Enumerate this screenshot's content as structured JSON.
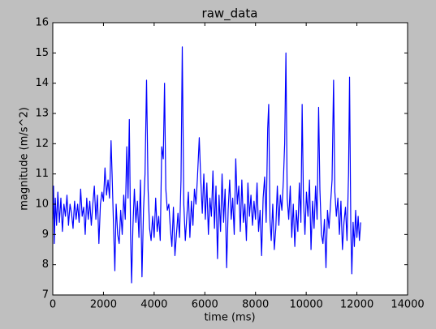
{
  "chart_data": {
    "type": "line",
    "title": "raw_data",
    "xlabel": "time (ms)",
    "ylabel": "magnitude (m/s^2)",
    "color": "#0000ff",
    "grid": false,
    "x": [
      0,
      30,
      60,
      100,
      150,
      200,
      260,
      320,
      380,
      440,
      500,
      560,
      620,
      680,
      740,
      800,
      860,
      920,
      980,
      1040,
      1100,
      1160,
      1220,
      1280,
      1340,
      1400,
      1460,
      1520,
      1580,
      1640,
      1700,
      1760,
      1820,
      1880,
      1940,
      2000,
      2060,
      2120,
      2180,
      2240,
      2300,
      2340,
      2400,
      2450,
      2500,
      2560,
      2620,
      2680,
      2740,
      2800,
      2860,
      2920,
      2970,
      3020,
      3070,
      3110,
      3160,
      3220,
      3280,
      3340,
      3400,
      3460,
      3520,
      3580,
      3640,
      3700,
      3760,
      3820,
      3880,
      3940,
      4000,
      4060,
      4120,
      4180,
      4240,
      4300,
      4360,
      4410,
      4460,
      4520,
      4580,
      4640,
      4700,
      4760,
      4820,
      4880,
      4940,
      5000,
      5060,
      5110,
      5170,
      5230,
      5290,
      5350,
      5410,
      5470,
      5530,
      5590,
      5650,
      5710,
      5780,
      5840,
      5900,
      5960,
      6020,
      6080,
      6140,
      6200,
      6260,
      6320,
      6380,
      6440,
      6500,
      6560,
      6620,
      6680,
      6740,
      6800,
      6860,
      6920,
      6980,
      7040,
      7100,
      7160,
      7220,
      7280,
      7340,
      7400,
      7460,
      7520,
      7580,
      7640,
      7700,
      7760,
      7820,
      7880,
      7940,
      8000,
      8060,
      8120,
      8180,
      8240,
      8300,
      8360,
      8420,
      8480,
      8520,
      8570,
      8620,
      8680,
      8740,
      8800,
      8860,
      8920,
      8980,
      9040,
      9100,
      9150,
      9200,
      9250,
      9310,
      9370,
      9430,
      9490,
      9550,
      9610,
      9670,
      9730,
      9790,
      9840,
      9890,
      9950,
      10010,
      10070,
      10130,
      10190,
      10250,
      10310,
      10370,
      10430,
      10490,
      10540,
      10600,
      10660,
      10720,
      10780,
      10840,
      10900,
      10960,
      11020,
      11080,
      11130,
      11190,
      11250,
      11310,
      11370,
      11430,
      11490,
      11550,
      11610,
      11670,
      11710,
      11760,
      11800,
      11850,
      11900,
      11950,
      12000,
      12050,
      12100,
      12150
    ],
    "values": [
      9.5,
      10.6,
      8.7,
      10.2,
      9.3,
      10.4,
      9.4,
      10.2,
      9.1,
      10.0,
      9.6,
      10.3,
      9.3,
      10.0,
      9.7,
      9.2,
      10.1,
      9.5,
      10.0,
      9.4,
      10.5,
      9.6,
      9.9,
      9.0,
      10.2,
      9.5,
      10.1,
      9.3,
      10.0,
      10.6,
      9.5,
      10.3,
      8.7,
      10.0,
      10.4,
      10.1,
      11.2,
      10.3,
      10.8,
      10.2,
      12.1,
      11.0,
      9.2,
      7.8,
      10.0,
      9.0,
      8.7,
      9.8,
      9.0,
      10.3,
      9.5,
      11.9,
      10.2,
      12.8,
      9.0,
      7.4,
      9.2,
      10.5,
      9.4,
      10.1,
      8.9,
      10.8,
      7.6,
      9.8,
      11.0,
      14.1,
      10.5,
      9.2,
      8.8,
      9.6,
      8.9,
      10.2,
      9.1,
      9.6,
      8.8,
      11.9,
      11.5,
      14.0,
      10.5,
      9.8,
      10.0,
      9.2,
      8.6,
      9.9,
      8.3,
      9.0,
      9.7,
      8.9,
      10.8,
      15.2,
      10.0,
      8.8,
      9.6,
      10.4,
      8.9,
      10.1,
      9.3,
      10.5,
      10.0,
      10.9,
      12.2,
      10.8,
      9.7,
      11.0,
      9.5,
      10.7,
      9.0,
      10.2,
      9.6,
      11.1,
      9.2,
      10.6,
      8.2,
      10.3,
      9.1,
      11.0,
      9.4,
      10.5,
      7.9,
      9.8,
      10.8,
      9.5,
      10.2,
      9.0,
      11.5,
      10.0,
      10.6,
      9.1,
      10.8,
      9.4,
      10.0,
      8.8,
      10.7,
      9.6,
      10.3,
      9.3,
      10.1,
      9.5,
      10.7,
      9.1,
      9.8,
      8.3,
      10.2,
      10.9,
      9.4,
      12.5,
      13.3,
      9.5,
      8.8,
      10.0,
      8.5,
      9.2,
      10.6,
      9.3,
      10.3,
      9.8,
      10.8,
      12.0,
      15.0,
      10.2,
      9.5,
      10.6,
      8.9,
      10.0,
      8.6,
      9.8,
      9.1,
      10.7,
      9.4,
      13.3,
      10.2,
      9.0,
      10.4,
      9.6,
      10.8,
      8.5,
      10.1,
      9.2,
      10.6,
      9.5,
      13.2,
      10.5,
      9.0,
      8.7,
      9.5,
      7.9,
      9.8,
      9.2,
      10.0,
      10.8,
      14.1,
      10.4,
      9.6,
      10.2,
      9.0,
      10.1,
      8.5,
      9.4,
      9.9,
      8.8,
      11.0,
      14.2,
      9.2,
      7.7,
      9.4,
      8.6,
      9.8,
      8.9,
      9.6,
      8.8,
      9.4
    ],
    "xlim": [
      0,
      14000
    ],
    "xticks": [
      0,
      2000,
      4000,
      6000,
      8000,
      10000,
      12000,
      14000
    ],
    "ylim": [
      7,
      16
    ],
    "yticks": [
      7,
      8,
      9,
      10,
      11,
      12,
      13,
      14,
      15,
      16
    ]
  }
}
